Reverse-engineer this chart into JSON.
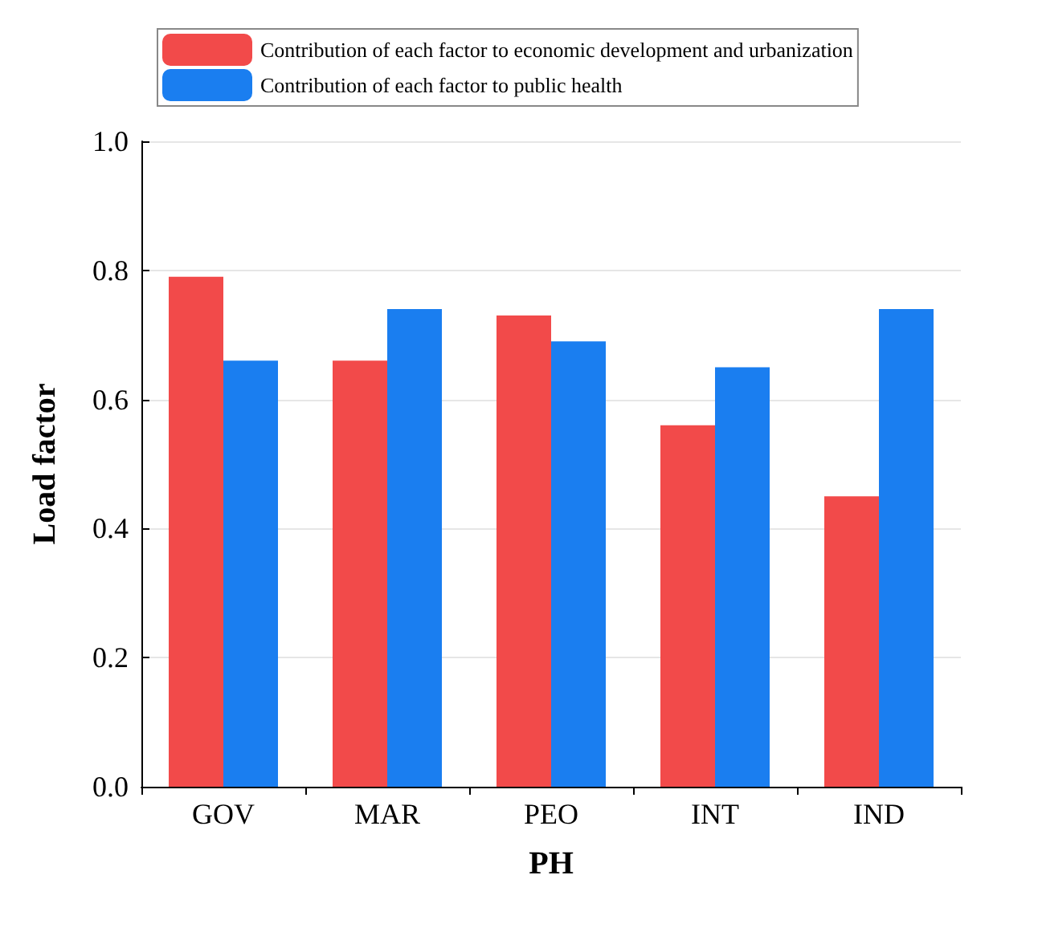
{
  "chart_data": {
    "type": "bar",
    "xlabel": "PH",
    "ylabel": "Load factor",
    "categories": [
      "GOV",
      "MAR",
      "PEO",
      "INT",
      "IND"
    ],
    "series": [
      {
        "name": "Contribution of each factor to economic development and urbanization",
        "color": "#f24a4a",
        "values": [
          0.79,
          0.66,
          0.73,
          0.56,
          0.45
        ]
      },
      {
        "name": "Contribution of each factor to public health",
        "color": "#1a7ef0",
        "values": [
          0.66,
          0.74,
          0.69,
          0.65,
          0.74
        ]
      }
    ],
    "ylim": [
      0,
      1.0
    ],
    "yticks": [
      {
        "value": 0,
        "label": "0.0"
      },
      0.2,
      0.4,
      0.6,
      0.8,
      {
        "value": 1.0,
        "label": "1.0"
      }
    ],
    "grid": "y",
    "legend": "top left"
  }
}
